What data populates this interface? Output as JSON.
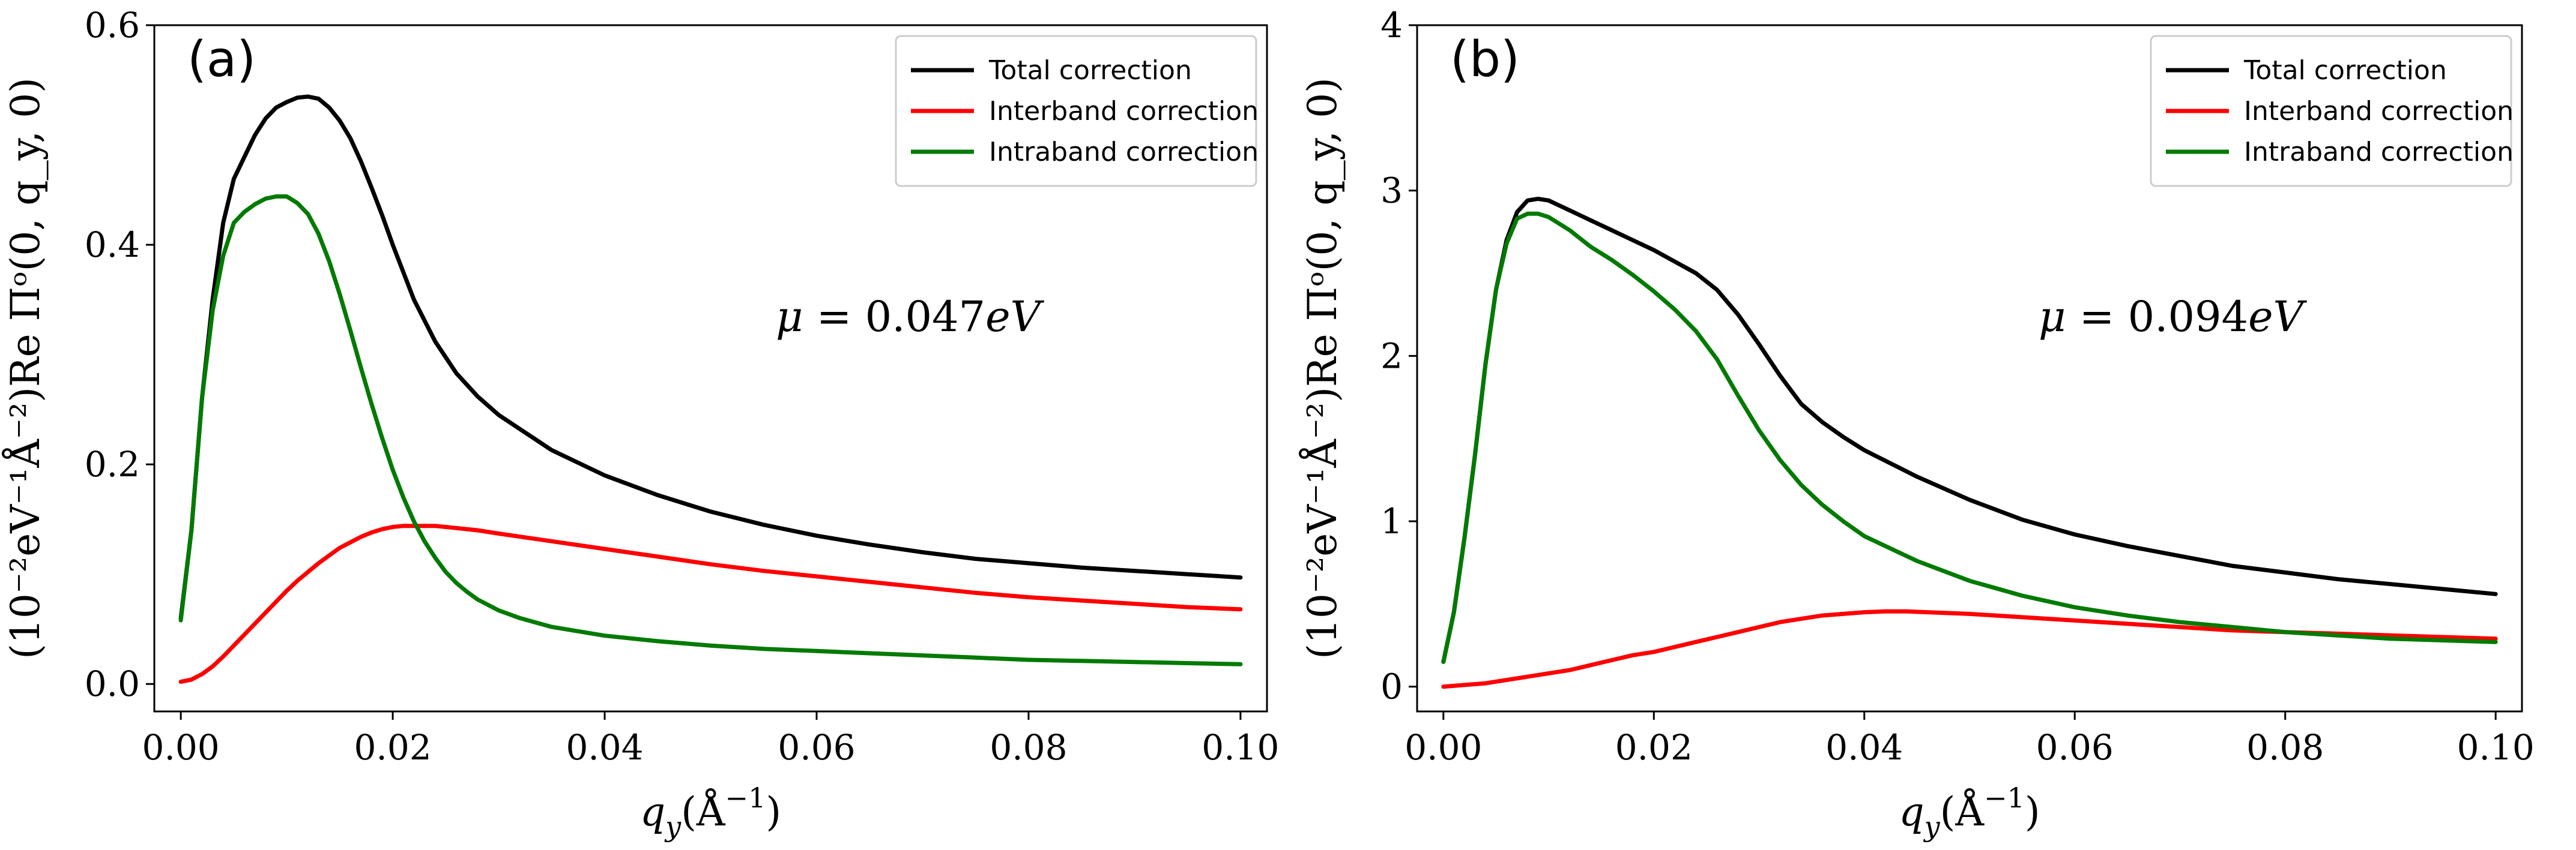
{
  "chart_data": [
    {
      "type": "line",
      "panel_label": "(a)",
      "annotation": {
        "prefix": "μ = 0.047",
        "unit": "eV"
      },
      "xlabel": {
        "base": "q",
        "sub": "y",
        "rest": "(Å",
        "sup": "−1",
        "close": ")"
      },
      "ylabel": "(10⁻²eV⁻¹Å⁻²)Re Πᵒ(0, q_y, 0)",
      "xlim": [
        -0.0025,
        0.1025
      ],
      "ylim": [
        -0.025,
        0.6
      ],
      "xticks": [
        0.0,
        0.02,
        0.04,
        0.06,
        0.08,
        0.1
      ],
      "xtick_labels": [
        "0.00",
        "0.02",
        "0.04",
        "0.06",
        "0.08",
        "0.10"
      ],
      "yticks": [
        0.0,
        0.2,
        0.4,
        0.6
      ],
      "ytick_labels": [
        "0.0",
        "0.2",
        "0.4",
        "0.6"
      ],
      "grid": false,
      "legend_position": "top-right",
      "series": [
        {
          "name": "Total correction",
          "color": "#000000",
          "x": [
            0,
            0.001,
            0.002,
            0.003,
            0.004,
            0.005,
            0.006,
            0.007,
            0.008,
            0.009,
            0.01,
            0.011,
            0.012,
            0.013,
            0.014,
            0.015,
            0.016,
            0.017,
            0.018,
            0.019,
            0.02,
            0.022,
            0.024,
            0.026,
            0.028,
            0.03,
            0.035,
            0.04,
            0.045,
            0.05,
            0.055,
            0.06,
            0.065,
            0.07,
            0.075,
            0.08,
            0.085,
            0.09,
            0.095,
            0.1
          ],
          "y": [
            0.06,
            0.14,
            0.26,
            0.35,
            0.42,
            0.46,
            0.48,
            0.5,
            0.515,
            0.525,
            0.53,
            0.534,
            0.535,
            0.533,
            0.525,
            0.513,
            0.497,
            0.476,
            0.452,
            0.427,
            0.4,
            0.35,
            0.312,
            0.283,
            0.262,
            0.245,
            0.213,
            0.19,
            0.172,
            0.157,
            0.145,
            0.135,
            0.127,
            0.12,
            0.114,
            0.11,
            0.106,
            0.103,
            0.1,
            0.097
          ]
        },
        {
          "name": "Interband correction",
          "color": "#ff0000",
          "x": [
            0,
            0.001,
            0.002,
            0.003,
            0.004,
            0.005,
            0.006,
            0.007,
            0.008,
            0.009,
            0.01,
            0.011,
            0.012,
            0.013,
            0.014,
            0.015,
            0.016,
            0.017,
            0.018,
            0.019,
            0.02,
            0.021,
            0.022,
            0.023,
            0.024,
            0.025,
            0.026,
            0.028,
            0.03,
            0.035,
            0.04,
            0.045,
            0.05,
            0.055,
            0.06,
            0.065,
            0.07,
            0.075,
            0.08,
            0.085,
            0.09,
            0.095,
            0.1
          ],
          "y": [
            0.002,
            0.004,
            0.009,
            0.016,
            0.025,
            0.035,
            0.045,
            0.055,
            0.065,
            0.075,
            0.085,
            0.094,
            0.102,
            0.11,
            0.117,
            0.124,
            0.129,
            0.134,
            0.138,
            0.141,
            0.143,
            0.144,
            0.144,
            0.144,
            0.144,
            0.143,
            0.142,
            0.14,
            0.137,
            0.13,
            0.123,
            0.116,
            0.109,
            0.103,
            0.098,
            0.093,
            0.088,
            0.083,
            0.079,
            0.076,
            0.073,
            0.07,
            0.068
          ]
        },
        {
          "name": "Intraband correction",
          "color": "#007a00",
          "x": [
            0,
            0.001,
            0.002,
            0.003,
            0.004,
            0.005,
            0.006,
            0.007,
            0.008,
            0.009,
            0.01,
            0.011,
            0.012,
            0.013,
            0.014,
            0.015,
            0.016,
            0.017,
            0.018,
            0.019,
            0.02,
            0.021,
            0.022,
            0.023,
            0.024,
            0.025,
            0.026,
            0.027,
            0.028,
            0.03,
            0.032,
            0.035,
            0.04,
            0.045,
            0.05,
            0.055,
            0.06,
            0.065,
            0.07,
            0.075,
            0.08,
            0.085,
            0.09,
            0.095,
            0.1
          ],
          "y": [
            0.058,
            0.14,
            0.26,
            0.34,
            0.39,
            0.42,
            0.43,
            0.437,
            0.442,
            0.444,
            0.444,
            0.438,
            0.428,
            0.41,
            0.385,
            0.355,
            0.322,
            0.288,
            0.255,
            0.224,
            0.195,
            0.17,
            0.148,
            0.13,
            0.115,
            0.102,
            0.092,
            0.084,
            0.077,
            0.067,
            0.06,
            0.052,
            0.044,
            0.039,
            0.035,
            0.032,
            0.03,
            0.028,
            0.026,
            0.024,
            0.022,
            0.021,
            0.02,
            0.019,
            0.018
          ]
        }
      ]
    },
    {
      "type": "line",
      "panel_label": "(b)",
      "annotation": {
        "prefix": "μ = 0.094",
        "unit": "eV"
      },
      "xlabel": {
        "base": "q",
        "sub": "y",
        "rest": "(Å",
        "sup": "−1",
        "close": ")"
      },
      "ylabel": "(10⁻²eV⁻¹Å⁻²)Re Πᵒ(0, q_y, 0)",
      "xlim": [
        -0.0025,
        0.1025
      ],
      "ylim": [
        -0.15,
        4.0
      ],
      "xticks": [
        0.0,
        0.02,
        0.04,
        0.06,
        0.08,
        0.1
      ],
      "xtick_labels": [
        "0.00",
        "0.02",
        "0.04",
        "0.06",
        "0.08",
        "0.10"
      ],
      "yticks": [
        0,
        1,
        2,
        3,
        4
      ],
      "ytick_labels": [
        "0",
        "1",
        "2",
        "3",
        "4"
      ],
      "grid": false,
      "legend_position": "top-right",
      "series": [
        {
          "name": "Total correction",
          "color": "#000000",
          "x": [
            0,
            0.001,
            0.002,
            0.003,
            0.004,
            0.005,
            0.006,
            0.007,
            0.008,
            0.009,
            0.01,
            0.011,
            0.012,
            0.013,
            0.014,
            0.015,
            0.016,
            0.018,
            0.02,
            0.022,
            0.024,
            0.026,
            0.028,
            0.03,
            0.032,
            0.034,
            0.036,
            0.038,
            0.04,
            0.045,
            0.05,
            0.055,
            0.06,
            0.065,
            0.07,
            0.075,
            0.08,
            0.085,
            0.09,
            0.095,
            0.1
          ],
          "y": [
            0.15,
            0.45,
            0.9,
            1.4,
            1.95,
            2.4,
            2.7,
            2.87,
            2.94,
            2.95,
            2.94,
            2.91,
            2.88,
            2.85,
            2.82,
            2.79,
            2.76,
            2.7,
            2.64,
            2.57,
            2.5,
            2.4,
            2.25,
            2.07,
            1.88,
            1.71,
            1.6,
            1.51,
            1.43,
            1.27,
            1.13,
            1.01,
            0.92,
            0.85,
            0.79,
            0.73,
            0.69,
            0.65,
            0.62,
            0.59,
            0.56
          ]
        },
        {
          "name": "Interband correction",
          "color": "#ff0000",
          "x": [
            0,
            0.002,
            0.004,
            0.006,
            0.008,
            0.01,
            0.012,
            0.014,
            0.016,
            0.018,
            0.02,
            0.022,
            0.024,
            0.026,
            0.028,
            0.03,
            0.032,
            0.034,
            0.036,
            0.038,
            0.04,
            0.042,
            0.044,
            0.046,
            0.048,
            0.05,
            0.055,
            0.06,
            0.065,
            0.07,
            0.075,
            0.08,
            0.085,
            0.09,
            0.095,
            0.1
          ],
          "y": [
            0.0,
            0.01,
            0.02,
            0.04,
            0.06,
            0.08,
            0.1,
            0.13,
            0.16,
            0.19,
            0.21,
            0.24,
            0.27,
            0.3,
            0.33,
            0.36,
            0.39,
            0.41,
            0.43,
            0.44,
            0.45,
            0.455,
            0.455,
            0.45,
            0.445,
            0.44,
            0.42,
            0.4,
            0.38,
            0.36,
            0.34,
            0.33,
            0.32,
            0.31,
            0.3,
            0.29
          ]
        },
        {
          "name": "Intraband correction",
          "color": "#007a00",
          "x": [
            0,
            0.001,
            0.002,
            0.003,
            0.004,
            0.005,
            0.006,
            0.007,
            0.008,
            0.009,
            0.01,
            0.011,
            0.012,
            0.013,
            0.014,
            0.015,
            0.016,
            0.018,
            0.02,
            0.022,
            0.024,
            0.026,
            0.028,
            0.03,
            0.032,
            0.034,
            0.036,
            0.038,
            0.04,
            0.045,
            0.05,
            0.055,
            0.06,
            0.065,
            0.07,
            0.075,
            0.08,
            0.085,
            0.09,
            0.095,
            0.1
          ],
          "y": [
            0.15,
            0.45,
            0.9,
            1.4,
            1.95,
            2.4,
            2.68,
            2.83,
            2.86,
            2.86,
            2.84,
            2.8,
            2.76,
            2.71,
            2.66,
            2.62,
            2.58,
            2.49,
            2.39,
            2.28,
            2.15,
            1.98,
            1.76,
            1.55,
            1.37,
            1.22,
            1.1,
            1.0,
            0.91,
            0.76,
            0.64,
            0.55,
            0.48,
            0.43,
            0.39,
            0.36,
            0.33,
            0.31,
            0.29,
            0.28,
            0.27
          ]
        }
      ]
    }
  ]
}
